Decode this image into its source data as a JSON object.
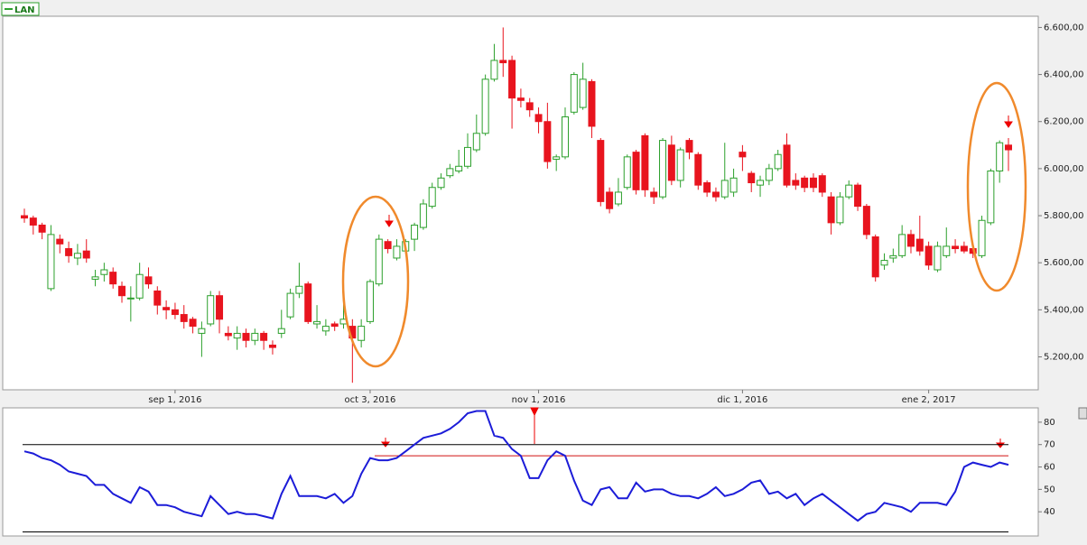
{
  "chart_data": [
    {
      "type": "candlestick",
      "name": "LAN",
      "categories": [
        null,
        null,
        null,
        null,
        null,
        null,
        null,
        null,
        null,
        null,
        null,
        null,
        null,
        null,
        null,
        null,
        null,
        "sep 1, 2016",
        null,
        null,
        null,
        null,
        null,
        null,
        null,
        null,
        null,
        null,
        null,
        null,
        null,
        null,
        null,
        null,
        null,
        null,
        null,
        null,
        null,
        "oct 3, 2016",
        null,
        null,
        null,
        null,
        null,
        null,
        null,
        null,
        null,
        null,
        null,
        null,
        null,
        null,
        null,
        null,
        null,
        null,
        "nov 1, 2016",
        null,
        null,
        null,
        null,
        null,
        null,
        null,
        null,
        null,
        null,
        null,
        null,
        null,
        null,
        null,
        null,
        null,
        null,
        null,
        null,
        null,
        null,
        "dic 1, 2016",
        null,
        null,
        null,
        null,
        null,
        null,
        null,
        null,
        null,
        null,
        null,
        null,
        null,
        null,
        null,
        null,
        null,
        null,
        null,
        null,
        "ene 2, 2017",
        null,
        null,
        null,
        null,
        null,
        null,
        null,
        null,
        null
      ],
      "open": [
        5800,
        5790,
        5760,
        5490,
        5700,
        5660,
        5620,
        5650,
        5530,
        5550,
        5560,
        5500,
        5450,
        5450,
        5540,
        5480,
        5410,
        5400,
        5380,
        5360,
        5300,
        5340,
        5460,
        5300,
        5280,
        5300,
        5270,
        5300,
        5250,
        5300,
        5370,
        5470,
        5510,
        5340,
        5310,
        5340,
        5340,
        5330,
        5270,
        5350,
        5510,
        5690,
        5620,
        5650,
        5700,
        5750,
        5840,
        5920,
        5970,
        5990,
        6010,
        6080,
        6150,
        6380,
        6460,
        6460,
        6300,
        6280,
        6230,
        6200,
        6040,
        6050,
        6240,
        6260,
        6370,
        6120,
        5900,
        5850,
        5920,
        6070,
        6140,
        5900,
        5880,
        6100,
        5950,
        6120,
        6060,
        5940,
        5900,
        5880,
        5900,
        6070,
        5980,
        5930,
        5950,
        6000,
        6100,
        5950,
        5960,
        5960,
        5970,
        5880,
        5770,
        5880,
        5930,
        5840,
        5710,
        5590,
        5620,
        5630,
        5720,
        5700,
        5670,
        5570,
        5630,
        5670,
        5670,
        5660,
        5630,
        5770,
        5990,
        6100
      ],
      "high": [
        5830,
        5800,
        5770,
        5760,
        5720,
        5690,
        5680,
        5700,
        5570,
        5600,
        5580,
        5520,
        5500,
        5600,
        5580,
        5500,
        5440,
        5430,
        5420,
        5370,
        5350,
        5480,
        5480,
        5330,
        5330,
        5320,
        5320,
        5310,
        5270,
        5400,
        5490,
        5600,
        5520,
        5420,
        5360,
        5350,
        5460,
        5360,
        5360,
        5530,
        5720,
        5700,
        5700,
        5700,
        5770,
        5870,
        5940,
        5980,
        6020,
        6080,
        6150,
        6230,
        6400,
        6530,
        6600,
        6480,
        6340,
        6300,
        6260,
        6280,
        6060,
        6260,
        6410,
        6450,
        6380,
        6130,
        5920,
        5960,
        6060,
        6080,
        6150,
        5920,
        6130,
        6140,
        6090,
        6130,
        6070,
        5950,
        5920,
        6110,
        6000,
        6100,
        5990,
        5970,
        6020,
        6080,
        6150,
        5980,
        5970,
        5980,
        5980,
        5900,
        5900,
        5950,
        5940,
        5850,
        5720,
        5640,
        5660,
        5760,
        5740,
        5800,
        5690,
        5690,
        5750,
        5700,
        5690,
        5680,
        5800,
        6000,
        6120,
        6130
      ],
      "low": [
        5770,
        5720,
        5700,
        5480,
        5640,
        5600,
        5590,
        5600,
        5500,
        5520,
        5490,
        5430,
        5350,
        5440,
        5490,
        5380,
        5360,
        5360,
        5320,
        5300,
        5200,
        5330,
        5300,
        5270,
        5230,
        5240,
        5250,
        5230,
        5210,
        5280,
        5360,
        5450,
        5340,
        5320,
        5290,
        5310,
        5320,
        5090,
        5240,
        5340,
        5500,
        5640,
        5610,
        5640,
        5650,
        5740,
        5830,
        5910,
        5960,
        5980,
        6000,
        6070,
        6140,
        6370,
        6390,
        6170,
        6260,
        6220,
        6150,
        6000,
        5990,
        6040,
        6230,
        6250,
        6130,
        5840,
        5810,
        5840,
        5910,
        5890,
        5880,
        5850,
        5870,
        5930,
        5920,
        6040,
        5910,
        5880,
        5860,
        5870,
        5880,
        5990,
        5900,
        5880,
        5930,
        5990,
        5920,
        5910,
        5900,
        5900,
        5880,
        5720,
        5760,
        5870,
        5820,
        5700,
        5520,
        5570,
        5600,
        5620,
        5640,
        5630,
        5570,
        5560,
        5620,
        5640,
        5640,
        5620,
        5620,
        5760,
        5940,
        5990
      ],
      "close": [
        5790,
        5760,
        5730,
        5720,
        5680,
        5630,
        5640,
        5620,
        5540,
        5570,
        5510,
        5460,
        5450,
        5550,
        5510,
        5420,
        5400,
        5380,
        5350,
        5330,
        5320,
        5460,
        5360,
        5290,
        5300,
        5270,
        5300,
        5270,
        5240,
        5320,
        5470,
        5500,
        5350,
        5350,
        5330,
        5330,
        5360,
        5280,
        5330,
        5520,
        5700,
        5660,
        5670,
        5690,
        5760,
        5850,
        5920,
        5960,
        6000,
        6010,
        6090,
        6150,
        6380,
        6460,
        6450,
        6300,
        6290,
        6250,
        6200,
        6030,
        6050,
        6220,
        6400,
        6380,
        6180,
        5860,
        5830,
        5900,
        6050,
        5910,
        5910,
        5880,
        6120,
        5950,
        6080,
        6070,
        5930,
        5900,
        5880,
        5950,
        5960,
        6050,
        5940,
        5950,
        6000,
        6060,
        5930,
        5930,
        5920,
        5920,
        5900,
        5770,
        5880,
        5930,
        5840,
        5720,
        5540,
        5610,
        5630,
        5720,
        5670,
        5650,
        5590,
        5670,
        5670,
        5660,
        5650,
        5640,
        5780,
        5990,
        6110,
        6080
      ],
      "up_color": "#2ca02c",
      "down_color": "#e8141e",
      "ylim": [
        5060,
        6640
      ],
      "yticks": [
        {
          "value": 5200,
          "label": "5.200,00"
        },
        {
          "value": 5400,
          "label": "5.400,00"
        },
        {
          "value": 5600,
          "label": "5.600,00"
        },
        {
          "value": 5800,
          "label": "5.800,00"
        },
        {
          "value": 6000,
          "label": "6.000,00"
        },
        {
          "value": 6200,
          "label": "6.200,00"
        },
        {
          "value": 6400,
          "label": "6.400,00"
        },
        {
          "value": 6600,
          "label": "6.600,00"
        }
      ]
    },
    {
      "type": "line",
      "color": "#1c1cd8",
      "values": [
        67,
        66,
        64,
        63,
        61,
        58,
        57,
        56,
        52,
        52,
        48,
        46,
        44,
        51,
        49,
        43,
        43,
        42,
        40,
        39,
        38,
        47,
        43,
        39,
        40,
        39,
        39,
        38,
        37,
        48,
        56,
        47,
        47,
        47,
        46,
        48,
        44,
        47,
        57,
        64,
        63,
        63,
        64,
        67,
        70,
        73,
        74,
        75,
        77,
        80,
        84,
        85,
        85,
        74,
        73,
        68,
        65,
        55,
        55,
        63,
        67,
        65,
        54,
        45,
        43,
        50,
        51,
        46,
        46,
        53,
        49,
        50,
        50,
        48,
        47,
        47,
        46,
        48,
        51,
        47,
        48,
        50,
        53,
        54,
        48,
        49,
        46,
        48,
        43,
        46,
        48,
        45,
        42,
        39,
        36,
        39,
        40,
        44,
        43,
        42,
        40,
        44,
        44,
        44,
        43,
        49,
        60,
        62,
        61,
        60,
        62,
        61
      ],
      "ylim": [
        30,
        86
      ],
      "yticks": [
        40,
        50,
        60,
        70,
        80
      ],
      "hlines": [
        {
          "value": 70,
          "color": "#000000"
        },
        {
          "value": 65,
          "color": "#d01010"
        },
        {
          "value": 31,
          "color": "#000000"
        }
      ]
    }
  ]
}
